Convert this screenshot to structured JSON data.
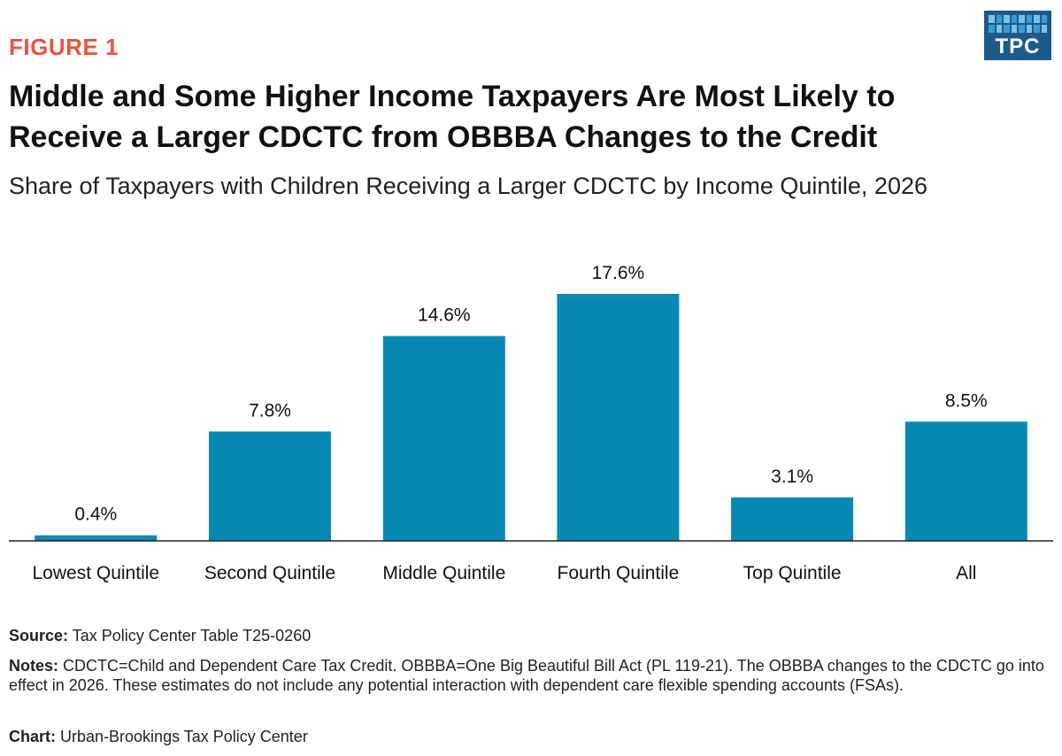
{
  "header": {
    "figure_label": "FIGURE 1",
    "logo_text": "TPC",
    "title": "Middle and Some Higher Income Taxpayers Are Most Likely to Receive a Larger CDCTC from OBBBA Changes to the Credit",
    "subtitle": "Share of Taxpayers with Children Receiving a Larger CDCTC by Income Quintile, 2026"
  },
  "colors": {
    "bar": "#0889b4",
    "accent": "#e8553c",
    "logo": "#1c5a8c"
  },
  "chart_data": {
    "type": "bar",
    "title": "Share of Taxpayers with Children Receiving a Larger CDCTC by Income Quintile, 2026",
    "categories": [
      "Lowest Quintile",
      "Second Quintile",
      "Middle Quintile",
      "Fourth Quintile",
      "Top Quintile",
      "All"
    ],
    "values": [
      0.4,
      7.8,
      14.6,
      17.6,
      3.1,
      8.5
    ],
    "value_labels": [
      "0.4%",
      "7.8%",
      "14.6%",
      "17.6%",
      "3.1%",
      "8.5%"
    ],
    "xlabel": "",
    "ylabel": "",
    "ylim": [
      0,
      20
    ],
    "grid": false,
    "legend": "none"
  },
  "footer": {
    "source_label": "Source:",
    "source_text": "Tax Policy Center Table T25-0260",
    "notes_label": "Notes:",
    "notes_text": "CDCTC=Child and Dependent Care Tax Credit. OBBBA=One Big Beautiful Bill Act (PL 119-21). The OBBBA changes to the CDCTC go into effect in 2026. These estimates do not include any potential interaction with dependent care flexible spending accounts (FSAs).",
    "chart_label": "Chart:",
    "chart_text": "Urban-Brookings Tax Policy Center"
  }
}
